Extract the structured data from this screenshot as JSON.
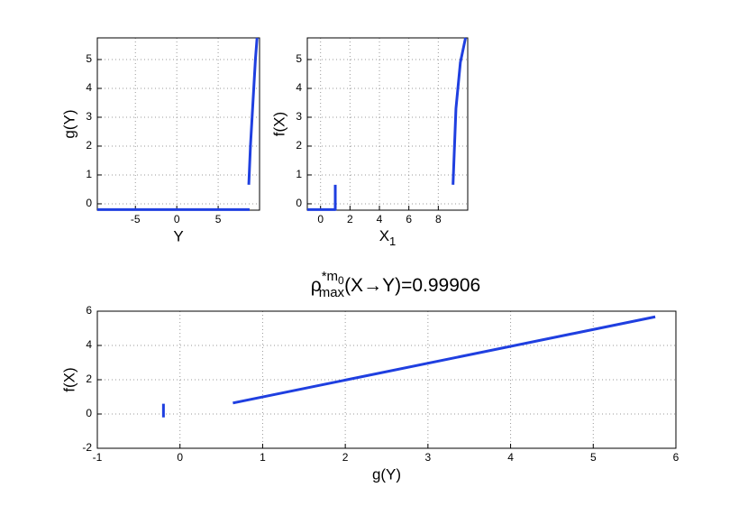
{
  "chart_data": [
    {
      "type": "line",
      "xlabel": "Y",
      "ylabel": "g(Y)",
      "xlim": [
        -9.6,
        10
      ],
      "ylim": [
        -0.22,
        5.75
      ],
      "xticks": [
        -5,
        0,
        5
      ],
      "yticks": [
        0,
        1,
        2,
        3,
        4,
        5
      ],
      "grid": true,
      "series": [
        {
          "color": "#1f3fe0",
          "x": [
            -9.6,
            8.8,
            null,
            8.7,
            8.9,
            9.2,
            9.5,
            9.7
          ],
          "values": [
            -0.2,
            -0.2,
            null,
            0.66,
            2,
            3.5,
            5,
            5.75
          ]
        }
      ]
    },
    {
      "type": "line",
      "xlabel": [
        "X",
        "1"
      ],
      "ylabel": "f(X)",
      "xlim": [
        -0.9,
        10
      ],
      "ylim": [
        -0.22,
        5.75
      ],
      "xticks": [
        0,
        2,
        4,
        6,
        8
      ],
      "yticks": [
        0,
        1,
        2,
        3,
        4,
        5
      ],
      "grid": true,
      "series": [
        {
          "color": "#1f3fe0",
          "x": [
            -0.9,
            1,
            1,
            null,
            9,
            9.2,
            9.5,
            9.85
          ],
          "values": [
            -0.2,
            -0.2,
            0.66,
            null,
            0.66,
            3.3,
            4.9,
            5.75
          ]
        }
      ]
    },
    {
      "type": "line",
      "title": [
        "ρ",
        "*m",
        "0",
        "max",
        "(X→Y)=0.99906"
      ],
      "xlabel": "g(Y)",
      "ylabel": "f(X)",
      "xlim": [
        -1,
        6
      ],
      "ylim": [
        -2,
        6
      ],
      "xticks": [
        -1,
        0,
        1,
        2,
        3,
        4,
        5,
        6
      ],
      "yticks": [
        -2,
        0,
        2,
        4,
        6
      ],
      "grid": true,
      "series": [
        {
          "color": "#1f3fe0",
          "x": [
            -0.2,
            -0.2,
            null,
            0.64,
            5.75
          ],
          "values": [
            -0.2,
            0.6,
            null,
            0.64,
            5.67
          ]
        }
      ]
    }
  ]
}
